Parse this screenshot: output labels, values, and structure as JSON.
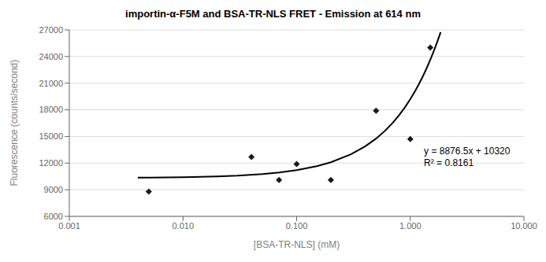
{
  "chart_data": {
    "type": "scatter",
    "title": "importin-α-F5M and BSA-TR-NLS FRET - Emission at 614 nm",
    "x_label": "[BSA-TR-NLS] (mM)",
    "y_label": "Fluorescence (counts/second)",
    "log": "x",
    "grid": "y",
    "xlim": [
      0.001,
      10.0
    ],
    "xticks": [
      0.001,
      {
        "value": 0.01,
        "label": "0.010"
      },
      {
        "value": 0.1,
        "label": "0.100"
      },
      {
        "value": 1.0,
        "label": "1.000"
      },
      {
        "value": 10.0,
        "label": "10.000"
      }
    ],
    "ylim": [
      6000,
      27000
    ],
    "yticks": [
      6000,
      9000,
      12000,
      15000,
      18000,
      21000,
      24000,
      27000
    ],
    "series": [
      {
        "type": "line",
        "color": "#000000",
        "marker": "none",
        "x": [
          0.004,
          0.005,
          0.01,
          0.02,
          0.03,
          0.05,
          0.07,
          0.1,
          0.15,
          0.2,
          0.3,
          0.4,
          0.5,
          0.6,
          0.7,
          0.8,
          0.9,
          1.0,
          1.1,
          1.2,
          1.3,
          1.4,
          1.5,
          1.6,
          1.7,
          1.8,
          1.85
        ],
        "values": [
          10355.506,
          10364.3825,
          10408.765,
          10497.53,
          10586.295,
          10763.825,
          10941.355,
          11207.65,
          11651.475,
          12095.3,
          12982.95,
          13870.6,
          14758.25,
          15645.9,
          16533.55,
          17421.2,
          18308.85,
          19196.5,
          20084.15,
          20971.8,
          21859.45,
          22747.1,
          23634.75,
          24522.4,
          25410.05,
          26297.7,
          26741.525
        ]
      },
      {
        "type": "scatter",
        "color": "#1a1a1a",
        "marker": "diamond",
        "x": [
          0.005,
          0.04,
          0.07,
          0.1,
          0.2,
          0.5,
          1.0,
          1.5
        ],
        "values": [
          8800,
          12700,
          10100,
          11900,
          10100,
          17900,
          14700,
          25000
        ]
      }
    ],
    "annotations": [
      "y = 8876.5x + 10320",
      "R² = 0.8161"
    ]
  }
}
